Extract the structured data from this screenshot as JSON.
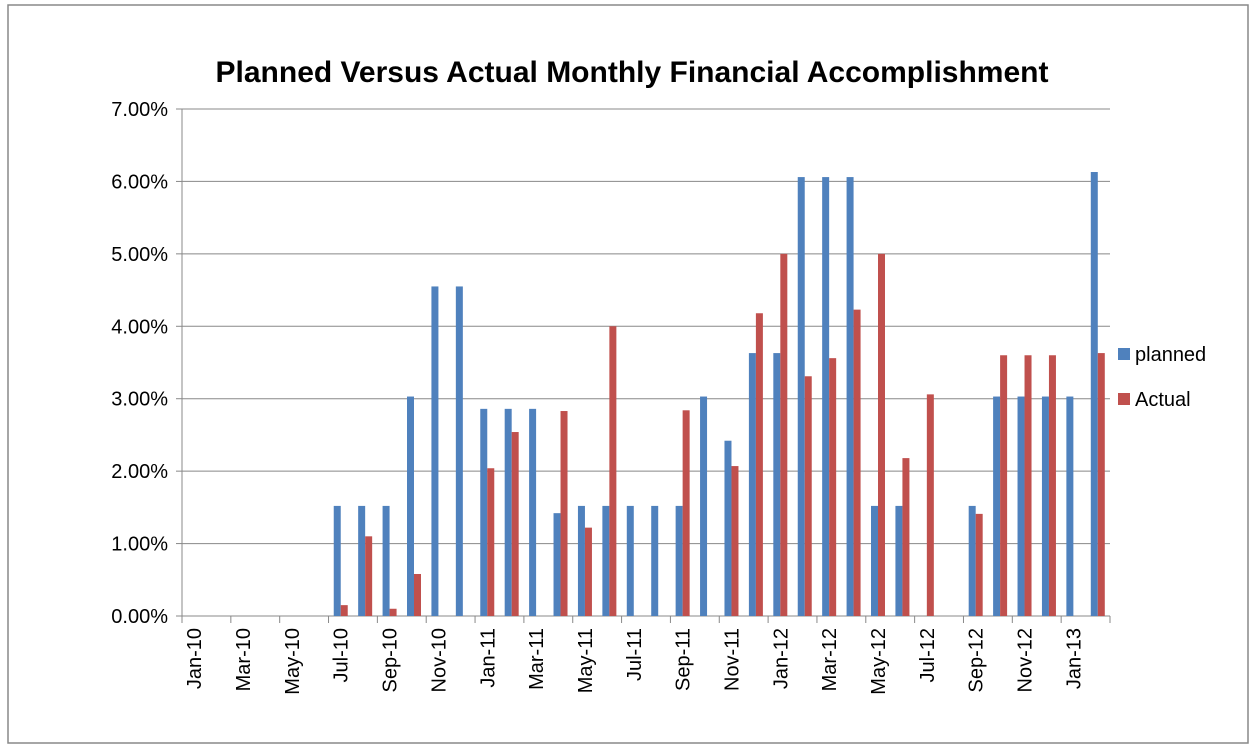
{
  "chart_data": {
    "type": "bar",
    "title": "Planned Versus Actual Monthly Financial Accomplishment",
    "categories": [
      "Jan-10",
      null,
      "Mar-10",
      null,
      "May-10",
      null,
      "Jul-10",
      null,
      "Sep-10",
      null,
      "Nov-10",
      null,
      "Jan-11",
      null,
      "Mar-11",
      null,
      "May-11",
      null,
      "Jul-11",
      null,
      "Sep-11",
      null,
      "Nov-11",
      null,
      "Jan-12",
      null,
      "Mar-12",
      null,
      "May-12",
      null,
      "Jul-12",
      null,
      "Sep-12",
      null,
      "Nov-12",
      null,
      "Jan-13",
      null
    ],
    "series": [
      {
        "name": "planned",
        "color": "#4f81bd",
        "values": [
          0,
          0,
          0,
          0,
          0,
          0,
          1.52,
          1.52,
          1.52,
          3.03,
          4.55,
          4.55,
          2.86,
          2.86,
          2.86,
          1.42,
          1.52,
          1.52,
          1.52,
          1.52,
          1.52,
          3.03,
          2.42,
          3.63,
          3.63,
          6.06,
          6.06,
          6.06,
          1.52,
          1.52,
          0,
          0,
          1.52,
          3.03,
          3.03,
          3.03,
          3.03,
          6.13
        ]
      },
      {
        "name": "Actual",
        "color": "#c0504d",
        "values": [
          0,
          0,
          0,
          0,
          0,
          0,
          0.15,
          1.1,
          0.1,
          0.58,
          0,
          0,
          2.04,
          2.54,
          0,
          2.83,
          1.22,
          4.0,
          0,
          0,
          2.84,
          0,
          2.07,
          4.18,
          5.0,
          3.31,
          3.56,
          4.23,
          5.0,
          2.18,
          3.06,
          0,
          1.41,
          3.6,
          3.6,
          3.6,
          0,
          3.63
        ]
      }
    ],
    "ylim": [
      0,
      7
    ],
    "yticks": [
      {
        "value": 0,
        "label": "0.00%"
      },
      {
        "value": 1,
        "label": "1.00%"
      },
      {
        "value": 2,
        "label": "2.00%"
      },
      {
        "value": 3,
        "label": "3.00%"
      },
      {
        "value": 4,
        "label": "4.00%"
      },
      {
        "value": 5,
        "label": "5.00%"
      },
      {
        "value": 6,
        "label": "6.00%"
      },
      {
        "value": 7,
        "label": "7.00%"
      }
    ],
    "grid": true,
    "legend": "right"
  }
}
